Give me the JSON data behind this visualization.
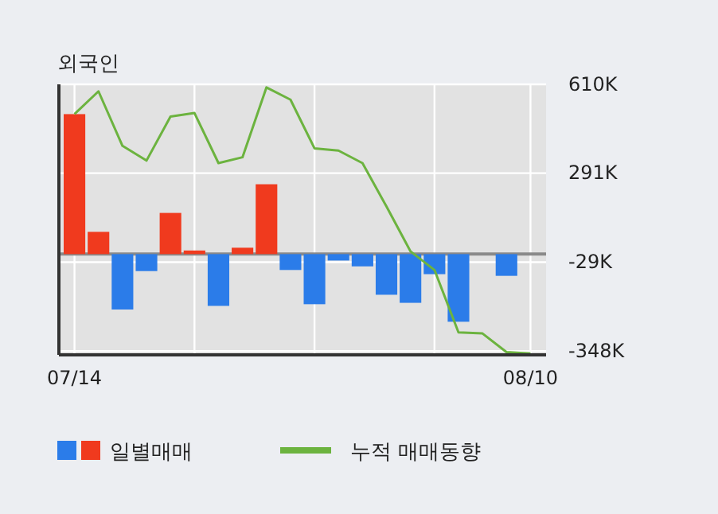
{
  "chart_data": {
    "type": "bar",
    "title": "외국인",
    "categories": [
      "07/14",
      null,
      null,
      null,
      null,
      null,
      null,
      null,
      null,
      null,
      null,
      null,
      null,
      null,
      null,
      null,
      null,
      null,
      null,
      "08/10"
    ],
    "series": [
      {
        "name": "일별매매",
        "colors": [
          "#f03a1e",
          "#f03a1e",
          "#2b7ce9",
          "#2b7ce9",
          "#f03a1e",
          "#f03a1e",
          "#2b7ce9",
          "#f03a1e",
          "#f03a1e",
          "#2b7ce9",
          "#2b7ce9",
          "#2b7ce9",
          "#2b7ce9",
          "#2b7ce9",
          "#2b7ce9",
          "#2b7ce9",
          "#2b7ce9",
          null,
          "#2b7ce9",
          null
        ],
        "values": [
          503,
          80,
          -199,
          -61,
          148,
          13,
          -186,
          23,
          251,
          -57,
          -180,
          -23,
          -44,
          -146,
          -175,
          -72,
          -243,
          null,
          -78,
          null
        ]
      },
      {
        "type": "line",
        "name": "누적 매매동향",
        "color": "#6cb33f",
        "values": [
          503,
          585,
          389,
          336,
          494,
          507,
          327,
          348,
          599,
          555,
          380,
          372,
          327,
          171,
          10,
          -57,
          -281,
          -285,
          -352,
          -357
        ]
      }
    ],
    "ylim": [
      -362,
      610
    ],
    "yticks": [
      {
        "value": 610,
        "label": "610K"
      },
      {
        "value": 291,
        "label": "291K"
      },
      {
        "value": -29,
        "label": "-29K"
      },
      {
        "value": -348,
        "label": "-348K"
      }
    ],
    "grid": true,
    "legend": "bottom"
  }
}
